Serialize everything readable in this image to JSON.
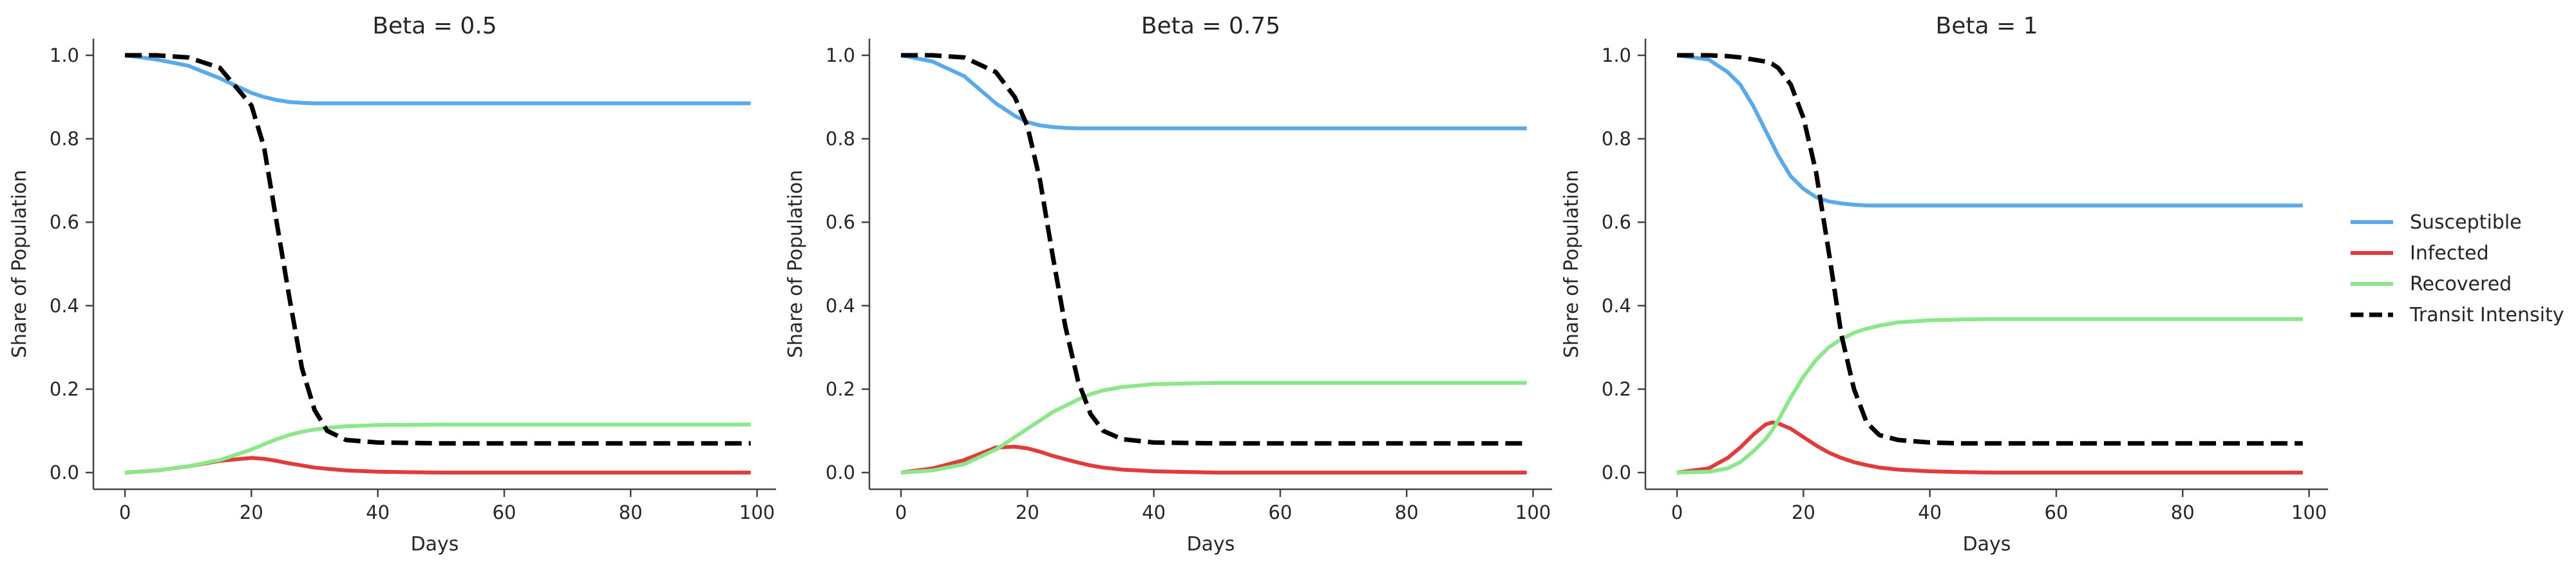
{
  "legend": {
    "position": "right",
    "entries": [
      {
        "label": "Susceptible",
        "color": "#5aa9ea",
        "dashed": false
      },
      {
        "label": "Infected",
        "color": "#e03c3c",
        "dashed": false
      },
      {
        "label": "Recovered",
        "color": "#8ce68a",
        "dashed": false
      },
      {
        "label": "Transit Intensity",
        "color": "#000000",
        "dashed": true
      }
    ]
  },
  "chart_data": [
    {
      "type": "line",
      "title": "Beta = 0.5",
      "xlabel": "Days",
      "ylabel": "Share of Population",
      "xlim": [
        -5,
        103
      ],
      "ylim": [
        -0.04,
        1.04
      ],
      "xticks": [
        0,
        20,
        40,
        60,
        80,
        100
      ],
      "xtick_labels": [
        "0",
        "20",
        "40",
        "60",
        "80",
        "100"
      ],
      "yticks": [
        0.0,
        0.2,
        0.4,
        0.6,
        0.8,
        1.0
      ],
      "ytick_labels": [
        "0.0",
        "0.2",
        "0.4",
        "0.6",
        "0.8",
        "1.0"
      ],
      "grid": false,
      "x": [
        0,
        5,
        10,
        15,
        20,
        22,
        24,
        26,
        28,
        30,
        32,
        35,
        40,
        50,
        60,
        70,
        80,
        90,
        99
      ],
      "series": [
        {
          "name": "Susceptible",
          "color": "#5aa9ea",
          "values": [
            1.0,
            0.99,
            0.975,
            0.945,
            0.91,
            0.9,
            0.893,
            0.888,
            0.886,
            0.885,
            0.885,
            0.885,
            0.885,
            0.885,
            0.885,
            0.885,
            0.885,
            0.885,
            0.885
          ]
        },
        {
          "name": "Infected",
          "color": "#e03c3c",
          "values": [
            0.0,
            0.005,
            0.015,
            0.028,
            0.035,
            0.033,
            0.028,
            0.022,
            0.017,
            0.012,
            0.009,
            0.005,
            0.002,
            0.0,
            0.0,
            0.0,
            0.0,
            0.0,
            0.0
          ]
        },
        {
          "name": "Recovered",
          "color": "#8ce68a",
          "values": [
            0.0,
            0.005,
            0.015,
            0.03,
            0.055,
            0.068,
            0.08,
            0.09,
            0.098,
            0.103,
            0.107,
            0.111,
            0.114,
            0.115,
            0.115,
            0.115,
            0.115,
            0.115,
            0.115
          ]
        },
        {
          "name": "Transit Intensity",
          "color": "#000000",
          "dashed": true,
          "values": [
            1.0,
            1.0,
            0.995,
            0.97,
            0.88,
            0.78,
            0.6,
            0.42,
            0.25,
            0.15,
            0.1,
            0.078,
            0.072,
            0.07,
            0.07,
            0.07,
            0.07,
            0.07,
            0.07
          ]
        }
      ]
    },
    {
      "type": "line",
      "title": "Beta = 0.75",
      "xlabel": "Days",
      "ylabel": "Share of Population",
      "xlim": [
        -5,
        103
      ],
      "ylim": [
        -0.04,
        1.04
      ],
      "xticks": [
        0,
        20,
        40,
        60,
        80,
        100
      ],
      "xtick_labels": [
        "0",
        "20",
        "40",
        "60",
        "80",
        "100"
      ],
      "yticks": [
        0.0,
        0.2,
        0.4,
        0.6,
        0.8,
        1.0
      ],
      "ytick_labels": [
        "0.0",
        "0.2",
        "0.4",
        "0.6",
        "0.8",
        "1.0"
      ],
      "grid": false,
      "x": [
        0,
        5,
        10,
        15,
        18,
        20,
        22,
        24,
        26,
        28,
        30,
        32,
        35,
        40,
        50,
        60,
        70,
        80,
        90,
        99
      ],
      "series": [
        {
          "name": "Susceptible",
          "color": "#5aa9ea",
          "values": [
            1.0,
            0.985,
            0.95,
            0.885,
            0.855,
            0.84,
            0.832,
            0.828,
            0.826,
            0.825,
            0.825,
            0.825,
            0.825,
            0.825,
            0.825,
            0.825,
            0.825,
            0.825,
            0.825,
            0.825
          ]
        },
        {
          "name": "Infected",
          "color": "#e03c3c",
          "values": [
            0.0,
            0.01,
            0.03,
            0.06,
            0.062,
            0.058,
            0.05,
            0.04,
            0.032,
            0.024,
            0.017,
            0.012,
            0.007,
            0.003,
            0.0,
            0.0,
            0.0,
            0.0,
            0.0,
            0.0
          ]
        },
        {
          "name": "Recovered",
          "color": "#8ce68a",
          "values": [
            0.0,
            0.005,
            0.02,
            0.055,
            0.085,
            0.105,
            0.125,
            0.145,
            0.16,
            0.175,
            0.188,
            0.197,
            0.205,
            0.212,
            0.215,
            0.215,
            0.215,
            0.215,
            0.215,
            0.215
          ]
        },
        {
          "name": "Transit Intensity",
          "color": "#000000",
          "dashed": true,
          "values": [
            1.0,
            1.0,
            0.995,
            0.96,
            0.9,
            0.83,
            0.7,
            0.52,
            0.35,
            0.22,
            0.14,
            0.1,
            0.08,
            0.072,
            0.07,
            0.07,
            0.07,
            0.07,
            0.07,
            0.07
          ]
        }
      ]
    },
    {
      "type": "line",
      "title": "Beta = 1",
      "xlabel": "Days",
      "ylabel": "Share of Population",
      "xlim": [
        -5,
        103
      ],
      "ylim": [
        -0.04,
        1.04
      ],
      "xticks": [
        0,
        20,
        40,
        60,
        80,
        100
      ],
      "xtick_labels": [
        "0",
        "20",
        "40",
        "60",
        "80",
        "100"
      ],
      "yticks": [
        0.0,
        0.2,
        0.4,
        0.6,
        0.8,
        1.0
      ],
      "ytick_labels": [
        "0.0",
        "0.2",
        "0.4",
        "0.6",
        "0.8",
        "1.0"
      ],
      "grid": false,
      "x": [
        0,
        5,
        8,
        10,
        12,
        14,
        15,
        16,
        18,
        20,
        22,
        24,
        26,
        28,
        30,
        32,
        35,
        40,
        45,
        50,
        60,
        70,
        80,
        90,
        99
      ],
      "series": [
        {
          "name": "Susceptible",
          "color": "#5aa9ea",
          "values": [
            1.0,
            0.99,
            0.96,
            0.93,
            0.88,
            0.82,
            0.79,
            0.76,
            0.71,
            0.68,
            0.66,
            0.65,
            0.645,
            0.642,
            0.64,
            0.64,
            0.64,
            0.64,
            0.64,
            0.64,
            0.64,
            0.64,
            0.64,
            0.64,
            0.64
          ]
        },
        {
          "name": "Infected",
          "color": "#e03c3c",
          "values": [
            0.0,
            0.01,
            0.035,
            0.06,
            0.09,
            0.115,
            0.12,
            0.118,
            0.105,
            0.085,
            0.065,
            0.048,
            0.035,
            0.025,
            0.018,
            0.012,
            0.007,
            0.003,
            0.001,
            0.0,
            0.0,
            0.0,
            0.0,
            0.0,
            0.0
          ]
        },
        {
          "name": "Recovered",
          "color": "#8ce68a",
          "values": [
            0.0,
            0.002,
            0.01,
            0.025,
            0.05,
            0.08,
            0.1,
            0.125,
            0.18,
            0.23,
            0.27,
            0.3,
            0.32,
            0.335,
            0.345,
            0.352,
            0.36,
            0.365,
            0.367,
            0.368,
            0.368,
            0.368,
            0.368,
            0.368,
            0.368
          ]
        },
        {
          "name": "Transit Intensity",
          "color": "#000000",
          "dashed": true,
          "values": [
            1.0,
            1.0,
            0.998,
            0.995,
            0.99,
            0.985,
            0.98,
            0.97,
            0.93,
            0.85,
            0.72,
            0.53,
            0.33,
            0.2,
            0.12,
            0.09,
            0.078,
            0.072,
            0.07,
            0.07,
            0.07,
            0.07,
            0.07,
            0.07,
            0.07
          ]
        }
      ]
    }
  ]
}
